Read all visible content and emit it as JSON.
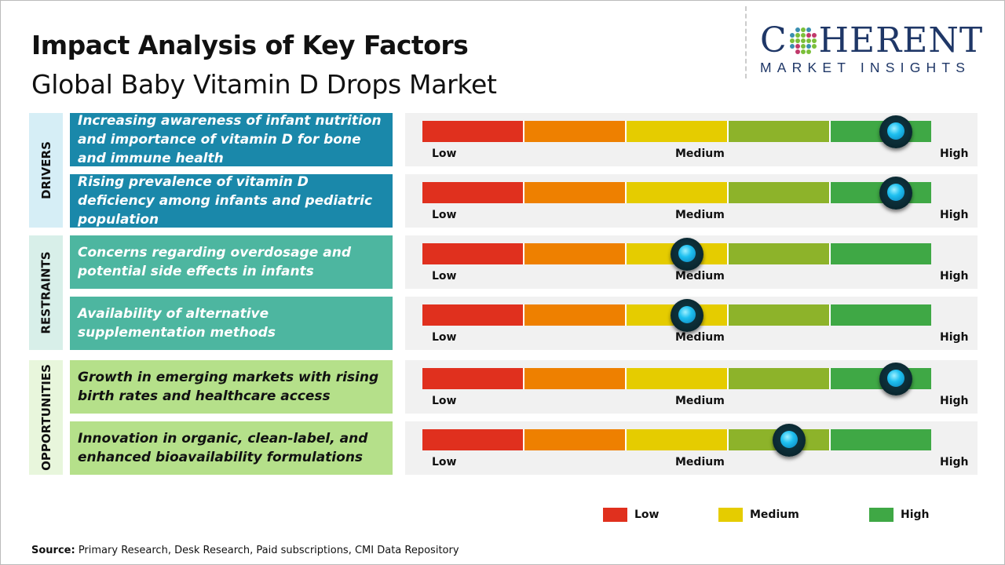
{
  "header": {
    "title": "Impact Analysis of Key Factors",
    "subtitle": "Global Baby Vitamin D Drops Market"
  },
  "logo": {
    "main_prefix": "C",
    "main_suffix": "HERENT",
    "sub": "MARKET INSIGHTS"
  },
  "scale": {
    "low": "Low",
    "medium": "Medium",
    "high": "High",
    "segment_colors": [
      "#e0301e",
      "#ee8000",
      "#e5cc00",
      "#8db32a",
      "#3fa845"
    ]
  },
  "categories": [
    {
      "label": "DRIVERS",
      "color": "#1a88aa",
      "bg": "#d6eef6",
      "text_color": "#ffffff"
    },
    {
      "label": "RESTRAINTS",
      "color": "#4db6a0",
      "bg": "#d8efe9",
      "text_color": "#ffffff"
    },
    {
      "label": "OPPORTUNITIES",
      "color": "#b5e08a",
      "bg": "#e8f6dc",
      "text_color": "#111111"
    }
  ],
  "factors": [
    {
      "text": "Increasing awareness of infant nutrition and importance of vitamin D for bone and immune health",
      "category": 0,
      "impact": 0.93
    },
    {
      "text": "Rising prevalence of vitamin D deficiency among infants and pediatric population",
      "category": 0,
      "impact": 0.93
    },
    {
      "text": "Concerns regarding overdosage and potential side effects in infants",
      "category": 1,
      "impact": 0.52
    },
    {
      "text": "Availability of alternative supplementation methods",
      "category": 1,
      "impact": 0.52
    },
    {
      "text": "Growth in emerging markets with rising birth rates and healthcare access",
      "category": 2,
      "impact": 0.93
    },
    {
      "text": "Innovation in organic, clean-label, and enhanced bioavailability formulations",
      "category": 2,
      "impact": 0.72
    }
  ],
  "legend": [
    {
      "label": "Low",
      "color": "#e0301e"
    },
    {
      "label": "Medium",
      "color": "#e5cc00"
    },
    {
      "label": "High",
      "color": "#3fa845"
    }
  ],
  "source": {
    "label": "Source:",
    "text": " Primary Research, Desk Research, Paid subscriptions, CMI Data Repository"
  }
}
